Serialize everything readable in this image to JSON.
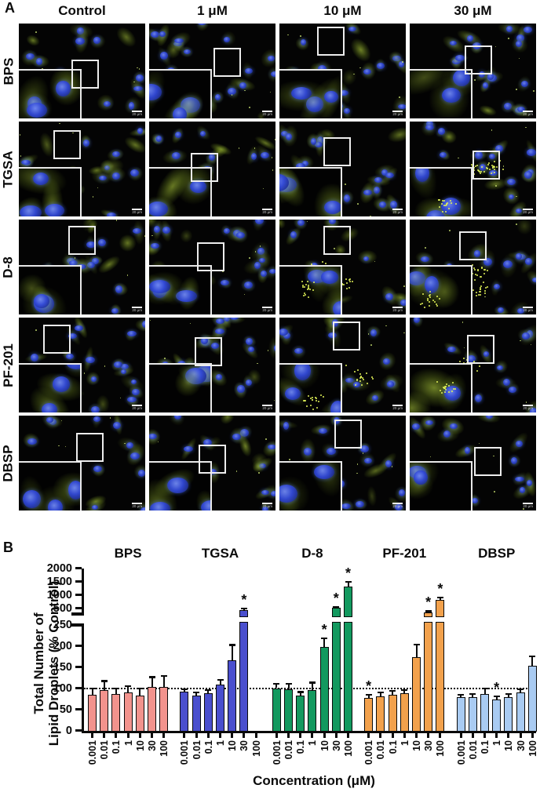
{
  "figure": {
    "panel_a": {
      "label": "A",
      "column_headers": [
        "Control",
        "1 μM",
        "10 μM",
        "30 μM"
      ],
      "row_labels": [
        "BPS",
        "TGSA",
        "D-8",
        "PF-201",
        "DBSP"
      ],
      "scale_bar_label": "20 μm"
    },
    "panel_b": {
      "label": "B"
    }
  },
  "chart_data": {
    "type": "bar",
    "title": "",
    "ylabel_line1": "Total Number of",
    "ylabel_line2": "Lipid Droplets (% Control)",
    "xlabel": "Concentration (μM)",
    "categories": [
      "0.001",
      "0.01",
      "0.1",
      "1",
      "10",
      "30",
      "100"
    ],
    "axis": {
      "lower_range": [
        0,
        250
      ],
      "upper_range": [
        300,
        2000
      ],
      "lower_ticks": [
        0,
        50,
        100,
        150,
        200,
        250
      ],
      "upper_ticks": [
        500,
        1000,
        1500,
        2000
      ],
      "reference_line": 100,
      "broken_axis": true,
      "grid": false
    },
    "significance_marker": "*",
    "series": [
      {
        "name": "BPS",
        "color": "#F2938D",
        "values": [
          84,
          95,
          86,
          90,
          82,
          103,
          103
        ],
        "errors": [
          16,
          22,
          14,
          15,
          18,
          23,
          26
        ],
        "significant": [
          false,
          false,
          false,
          false,
          false,
          false,
          false
        ]
      },
      {
        "name": "TGSA",
        "color": "#4A4FCE",
        "values": [
          92,
          82,
          88,
          108,
          165,
          430,
          null
        ],
        "errors": [
          6,
          8,
          8,
          12,
          37,
          70,
          null
        ],
        "significant": [
          false,
          false,
          false,
          false,
          false,
          true,
          false
        ]
      },
      {
        "name": "D-8",
        "color": "#13995F",
        "values": [
          100,
          97,
          83,
          95,
          198,
          510,
          1300
        ],
        "errors": [
          10,
          13,
          8,
          18,
          20,
          45,
          190
        ],
        "significant": [
          false,
          false,
          false,
          false,
          true,
          true,
          true
        ]
      },
      {
        "name": "PF-201",
        "color": "#F2A14C",
        "values": [
          77,
          81,
          84,
          88,
          173,
          340,
          800
        ],
        "errors": [
          8,
          9,
          10,
          8,
          30,
          50,
          110
        ],
        "significant": [
          true,
          false,
          false,
          false,
          false,
          true,
          true
        ]
      },
      {
        "name": "DBSP",
        "color": "#A9CBF2",
        "values": [
          78,
          79,
          86,
          74,
          79,
          90,
          153
        ],
        "errors": [
          7,
          7,
          14,
          6,
          8,
          8,
          22
        ],
        "significant": [
          false,
          false,
          false,
          true,
          false,
          false,
          false
        ]
      }
    ]
  }
}
